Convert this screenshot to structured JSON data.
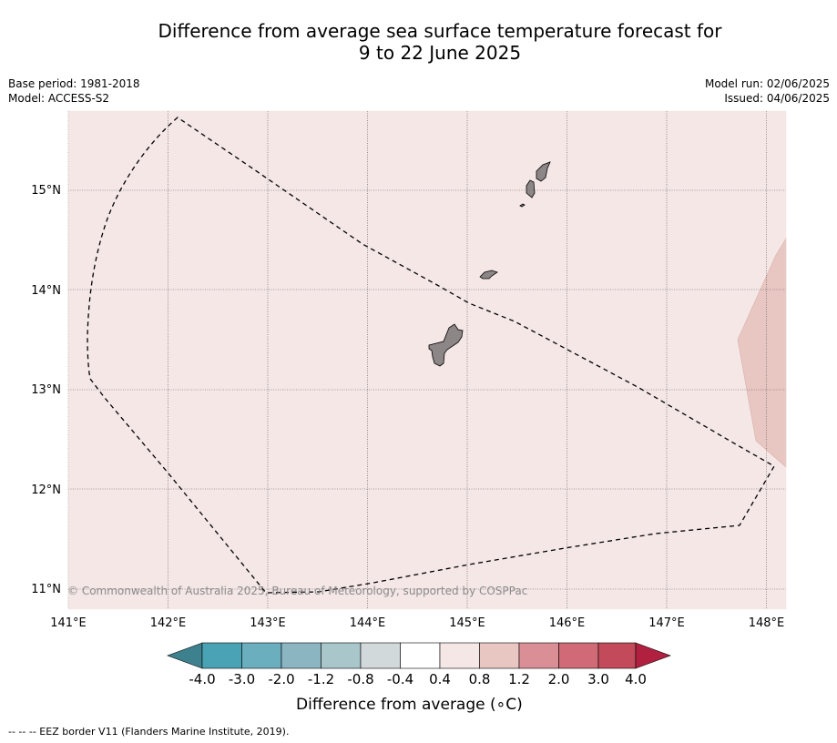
{
  "header": {
    "title_line1": "Difference from average sea surface temperature forecast for",
    "title_line2": "9 to 22 June 2025"
  },
  "meta": {
    "base_period": "Base period: 1981-2018",
    "model": "Model: ACCESS-S2",
    "model_run": "Model run: 02/06/2025",
    "issued": "Issued: 04/06/2025"
  },
  "map": {
    "lon_range": [
      141.0,
      148.2
    ],
    "lat_range": [
      10.8,
      15.8
    ],
    "lon_ticks": [
      "141°E",
      "142°E",
      "143°E",
      "144°E",
      "145°E",
      "146°E",
      "147°E",
      "148°E"
    ],
    "lat_ticks": [
      "15°N",
      "14°N",
      "13°N",
      "12°N",
      "11°N"
    ],
    "background_anomaly_color": "#f4e7e6",
    "warm_patch_color": "#e8c6c2",
    "land_color": "#8c8686",
    "copyright": "© Commonwealth of Australia 2025, Bureau of Meteorology, supported by COSPPac"
  },
  "colorbar": {
    "labels": [
      "-4.0",
      "-3.0",
      "-2.0",
      "-1.2",
      "-0.8",
      "-0.4",
      "0.4",
      "0.8",
      "1.2",
      "2.0",
      "3.0",
      "4.0"
    ],
    "colors": [
      "#3d818f",
      "#4aa3b5",
      "#6baebe",
      "#8bb5c1",
      "#a9c6cb",
      "#d2d9db",
      "#ffffff",
      "#f4e7e6",
      "#e8c6c2",
      "#da8f97",
      "#cf6a76",
      "#c34a5a",
      "#b22040"
    ],
    "title": "Difference from average (",
    "title_unit": "∘C)"
  },
  "footnote": "--  --  -- EEZ border V11 (Flanders Marine Institute, 2019)."
}
